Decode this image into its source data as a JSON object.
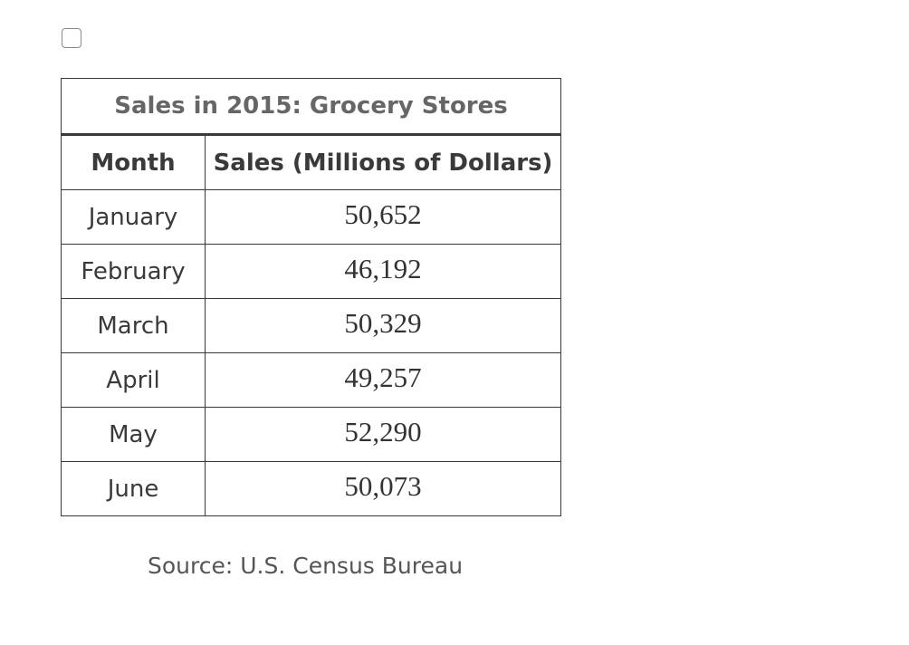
{
  "checkbox": {
    "checked": false
  },
  "table": {
    "caption": "Sales in 2015: Grocery Stores",
    "headers": {
      "month": "Month",
      "sales": "Sales (Millions of Dollars)"
    },
    "rows": [
      {
        "month": "January",
        "sales": "50,652"
      },
      {
        "month": "February",
        "sales": "46,192"
      },
      {
        "month": "March",
        "sales": "50,329"
      },
      {
        "month": "April",
        "sales": "49,257"
      },
      {
        "month": "May",
        "sales": "52,290"
      },
      {
        "month": "June",
        "sales": "50,073"
      }
    ]
  },
  "source": "Source: U.S. Census Bureau"
}
